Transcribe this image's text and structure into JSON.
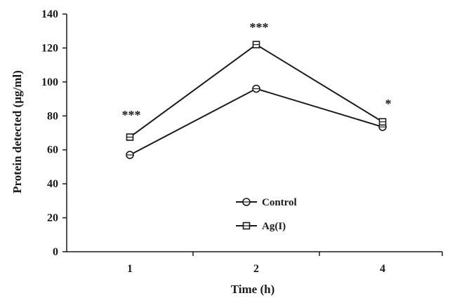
{
  "chart_data": {
    "type": "line",
    "title": "",
    "xlabel": "Time (h)",
    "ylabel": "Protein detected (µg/ml)",
    "categories": [
      "1",
      "2",
      "4"
    ],
    "ylim": [
      0,
      140
    ],
    "yticks": [
      "0",
      "20",
      "40",
      "60",
      "80",
      "100",
      "120",
      "140"
    ],
    "grid": false,
    "legend_position": "bottom-center",
    "series": [
      {
        "name": "Control",
        "marker": "circle",
        "values": [
          57,
          96,
          73.5
        ]
      },
      {
        "name": "Ag(I)",
        "marker": "square",
        "values": [
          67.5,
          122,
          76.5
        ]
      }
    ],
    "annotations": [
      "***",
      "***",
      "*"
    ],
    "colors": {
      "line": "#1a1a1a",
      "axis": "#1a1a1a"
    }
  }
}
